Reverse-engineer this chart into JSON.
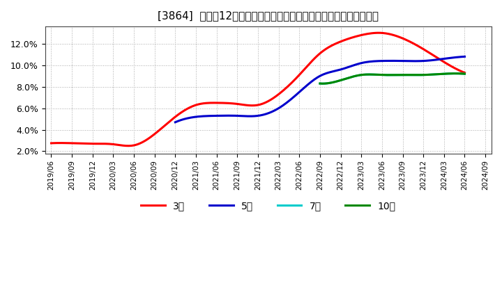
{
  "title": "[3864]  売上高12か月移動合計の対前年同期増減率の標準偏差の推移",
  "ylim": [
    0.018,
    0.136
  ],
  "yticks": [
    0.02,
    0.04,
    0.06,
    0.08,
    0.1,
    0.12
  ],
  "ytick_labels": [
    "2.0%",
    "4.0%",
    "6.0%",
    "8.0%",
    "10.0%",
    "12.0%"
  ],
  "background_color": "#ffffff",
  "plot_bg_color": "#ffffff",
  "grid_color": "#aaaaaa",
  "x_labels": [
    "2019/06",
    "2019/09",
    "2019/12",
    "2020/03",
    "2020/06",
    "2020/09",
    "2020/12",
    "2021/03",
    "2021/06",
    "2021/09",
    "2021/12",
    "2022/03",
    "2022/06",
    "2022/09",
    "2022/12",
    "2023/03",
    "2023/06",
    "2023/09",
    "2023/12",
    "2024/03",
    "2024/06",
    "2024/09"
  ],
  "series": {
    "3yr": {
      "color": "#ff0000",
      "label": "3年",
      "x": [
        0,
        1,
        2,
        3,
        4,
        5,
        6,
        7,
        8,
        9,
        10,
        11,
        12,
        13,
        14,
        15,
        16,
        17,
        18,
        19,
        20
      ],
      "y": [
        0.0275,
        0.0275,
        0.027,
        0.0265,
        0.0255,
        0.036,
        0.052,
        0.063,
        0.065,
        0.064,
        0.063,
        0.073,
        0.091,
        0.111,
        0.122,
        0.128,
        0.13,
        0.125,
        0.115,
        0.103,
        0.093
      ]
    },
    "5yr": {
      "color": "#0000cc",
      "label": "5年",
      "x": [
        6,
        7,
        8,
        9,
        10,
        11,
        12,
        13,
        14,
        15,
        16,
        17,
        18,
        19,
        20
      ],
      "y": [
        0.047,
        0.052,
        0.053,
        0.053,
        0.053,
        0.06,
        0.075,
        0.09,
        0.096,
        0.102,
        0.104,
        0.104,
        0.104,
        0.106,
        0.108
      ]
    },
    "7yr": {
      "color": "#00cccc",
      "label": "7年",
      "x": [
        13,
        14,
        15,
        16,
        17,
        18,
        19,
        20
      ],
      "y": [
        0.083,
        0.086,
        0.091,
        0.091,
        0.091,
        0.091,
        0.092,
        0.092
      ]
    },
    "10yr": {
      "color": "#008800",
      "label": "10年",
      "x": [
        13,
        14,
        15,
        16,
        17,
        18,
        19,
        20
      ],
      "y": [
        0.083,
        0.086,
        0.091,
        0.091,
        0.091,
        0.091,
        0.092,
        0.092
      ]
    }
  },
  "legend_labels": [
    "3年",
    "5年",
    "7年",
    "10年"
  ],
  "legend_colors": [
    "#ff0000",
    "#0000cc",
    "#00cccc",
    "#008800"
  ]
}
